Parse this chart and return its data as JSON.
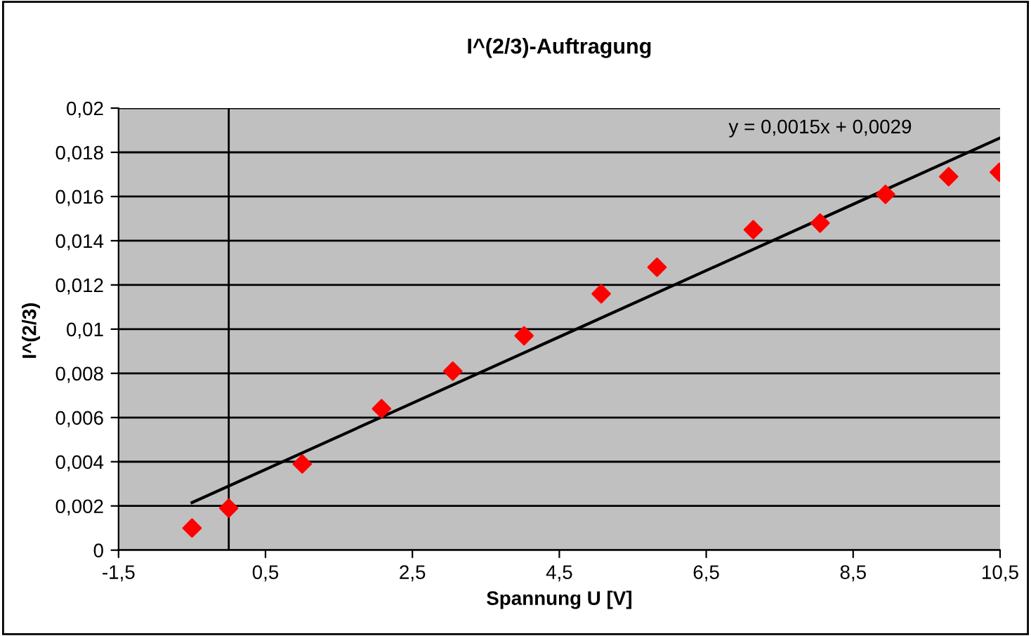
{
  "chart_data": {
    "type": "scatter",
    "title": "I^(2/3)-Auftragung",
    "xlabel": "Spannung U [V]",
    "ylabel": "I^(2/3)",
    "annotations": [
      "y = 0,0015x + 0,0029"
    ],
    "series": [
      {
        "color": "#ff0000",
        "marker": "diamond",
        "x": [
          -0.5,
          0,
          1,
          2.08,
          3.05,
          4.02,
          5.07,
          5.83,
          7.14,
          8.05,
          8.94,
          9.8,
          10.49
        ],
        "values": [
          0.001,
          0.0019,
          0.0039,
          0.0064,
          0.0081,
          0.0097,
          0.0116,
          0.0128,
          0.0145,
          0.0148,
          0.0161,
          0.0169,
          0.0171
        ]
      },
      {
        "type": "line",
        "color": "#000000",
        "marker": "none",
        "line_style": "solid",
        "x": [
          -0.5,
          10.5
        ],
        "values": [
          0.00215,
          0.01865
        ]
      }
    ],
    "xlim": [
      -1.5,
      10.5
    ],
    "xticks": [
      {
        "value": -1.5,
        "label": "-1,5"
      },
      {
        "value": 0.5,
        "label": "0,5"
      },
      {
        "value": 2.5,
        "label": "2,5"
      },
      {
        "value": 4.5,
        "label": "4,5"
      },
      {
        "value": 6.5,
        "label": "6,5"
      },
      {
        "value": 8.5,
        "label": "8,5"
      },
      {
        "value": 10.5,
        "label": "10,5"
      }
    ],
    "ylim": [
      0,
      0.02
    ],
    "yticks": [
      0,
      {
        "value": 0.002,
        "label": "0,002"
      },
      {
        "value": 0.004,
        "label": "0,004"
      },
      {
        "value": 0.006,
        "label": "0,006"
      },
      {
        "value": 0.008,
        "label": "0,008"
      },
      {
        "value": 0.01,
        "label": "0,01"
      },
      {
        "value": 0.012,
        "label": "0,012"
      },
      {
        "value": 0.014,
        "label": "0,014"
      },
      {
        "value": 0.016,
        "label": "0,016"
      },
      {
        "value": 0.018,
        "label": "0,018"
      },
      {
        "value": 0.02,
        "label": "0,02"
      }
    ],
    "ref_lines": [
      {
        "axis": "x",
        "value": 0,
        "color": "#000000"
      }
    ],
    "grid": "y",
    "legend": false
  }
}
